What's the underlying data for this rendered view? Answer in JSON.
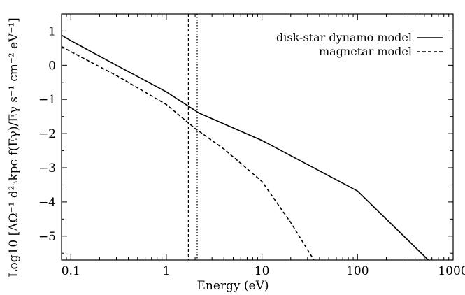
{
  "chart_data": {
    "type": "line",
    "x_scale": "log",
    "xlabel": "Energy (eV)",
    "ylabel": "Log10 [ΔΩ⁻¹ d²₃kpc f(Eγ)/Eγ  s⁻¹ cm⁻² eV⁻¹]",
    "xlim": [
      0.08,
      1000
    ],
    "ylim": [
      -5.7,
      1.5
    ],
    "x_ticks": [
      0.1,
      1,
      10,
      100,
      1000
    ],
    "x_tick_labels": [
      "0.1",
      "1",
      "10",
      "100",
      "1000"
    ],
    "y_ticks": [
      1,
      0,
      -1,
      -2,
      -3,
      -4,
      -5
    ],
    "y_tick_labels": [
      "1",
      "0",
      "−1",
      "−2",
      "−3",
      "−4",
      "−5"
    ],
    "legend_position": "top-right",
    "series": [
      {
        "name": "disk-star dynamo model",
        "style": "solid",
        "x": [
          0.08,
          0.1,
          0.3,
          1,
          2.2,
          10,
          100,
          550
        ],
        "y": [
          0.88,
          0.72,
          0.0,
          -0.78,
          -1.4,
          -2.2,
          -3.68,
          -5.7
        ]
      },
      {
        "name": "magnetar model",
        "style": "dashed",
        "x": [
          0.08,
          0.1,
          0.3,
          1,
          2,
          4,
          10,
          20,
          30,
          35
        ],
        "y": [
          0.55,
          0.4,
          -0.3,
          -1.15,
          -1.85,
          -2.45,
          -3.4,
          -4.6,
          -5.4,
          -5.7
        ]
      }
    ],
    "vertical_lines": [
      {
        "x": 1.7,
        "style": "dashed"
      },
      {
        "x": 2.1,
        "style": "dotted"
      }
    ]
  }
}
